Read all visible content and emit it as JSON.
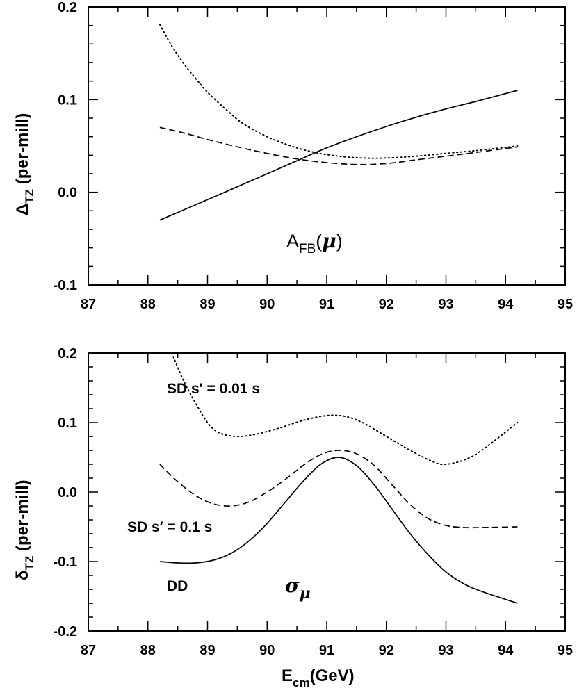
{
  "chart_data": [
    {
      "type": "line",
      "panel": "top",
      "ylabel": {
        "main": "Δ",
        "sub": "TZ",
        "rest": " (per-mill)"
      },
      "annotation": {
        "main": "A",
        "sub": "FB",
        "open": "(",
        "greek": "μ",
        "close": ")"
      },
      "xlim": [
        87,
        95
      ],
      "ylim": [
        -0.1,
        0.2
      ],
      "xticks": [
        87,
        88,
        89,
        90,
        91,
        92,
        93,
        94,
        95
      ],
      "xtick_labels": [
        "87",
        "88",
        "89",
        "90",
        "91",
        "92",
        "93",
        "94",
        "95"
      ],
      "yticks": [
        -0.1,
        0.0,
        0.1,
        0.2
      ],
      "ytick_labels": [
        "-0.1",
        "0.0",
        "0.1",
        "0.2"
      ],
      "series": [
        {
          "name": "solid",
          "style": "solid",
          "x": [
            88.2,
            88.6,
            89.0,
            89.5,
            90.0,
            90.5,
            91.0,
            91.5,
            92.0,
            92.5,
            93.0,
            93.5,
            94.2
          ],
          "y": [
            -0.03,
            -0.019,
            -0.008,
            0.006,
            0.02,
            0.034,
            0.048,
            0.06,
            0.071,
            0.081,
            0.09,
            0.098,
            0.11
          ]
        },
        {
          "name": "dashed",
          "style": "dashed",
          "x": [
            88.2,
            88.6,
            89.0,
            89.5,
            90.0,
            90.5,
            91.0,
            91.5,
            92.0,
            92.5,
            93.0,
            93.5,
            94.2
          ],
          "y": [
            0.07,
            0.064,
            0.057,
            0.049,
            0.042,
            0.036,
            0.032,
            0.03,
            0.031,
            0.035,
            0.039,
            0.043,
            0.049
          ]
        },
        {
          "name": "dotted",
          "style": "dotted",
          "x": [
            88.2,
            88.4,
            88.6,
            88.8,
            89.0,
            89.3,
            89.6,
            90.0,
            90.4,
            90.8,
            91.2,
            91.6,
            92.0,
            92.5,
            93.0,
            93.5,
            94.2
          ],
          "y": [
            0.181,
            0.158,
            0.139,
            0.123,
            0.108,
            0.09,
            0.074,
            0.06,
            0.05,
            0.043,
            0.039,
            0.037,
            0.037,
            0.039,
            0.042,
            0.045,
            0.05
          ]
        }
      ]
    },
    {
      "type": "line",
      "panel": "bottom",
      "ylabel": {
        "main": "δ",
        "sub": "TZ",
        "rest": " (per-mill)"
      },
      "xlabel": {
        "main": "E",
        "sub": "cm",
        "rest": "(GeV)"
      },
      "annotations": [
        {
          "text": "SD s′ = 0.01 s"
        },
        {
          "text": "SD s′ = 0.1 s"
        },
        {
          "text": "DD"
        }
      ],
      "sigma_label": {
        "main": "σ",
        "sub": "μ"
      },
      "xlim": [
        87,
        95
      ],
      "ylim": [
        -0.2,
        0.2
      ],
      "xticks": [
        87,
        88,
        89,
        90,
        91,
        92,
        93,
        94,
        95
      ],
      "xtick_labels": [
        "87",
        "88",
        "89",
        "90",
        "91",
        "92",
        "93",
        "94",
        "95"
      ],
      "yticks": [
        -0.2,
        -0.1,
        0.0,
        0.1,
        0.2
      ],
      "ytick_labels": [
        "-0.2",
        "-0.1",
        "0.0",
        "0.1",
        "0.2"
      ],
      "series": [
        {
          "name": "DD",
          "style": "solid",
          "x": [
            88.2,
            88.5,
            88.8,
            89.1,
            89.4,
            89.7,
            90.0,
            90.3,
            90.6,
            90.9,
            91.2,
            91.5,
            91.8,
            92.1,
            92.4,
            92.7,
            93.0,
            93.3,
            93.6,
            94.2
          ],
          "y": [
            -0.1,
            -0.102,
            -0.102,
            -0.098,
            -0.088,
            -0.07,
            -0.045,
            -0.015,
            0.015,
            0.04,
            0.05,
            0.038,
            0.01,
            -0.025,
            -0.06,
            -0.09,
            -0.115,
            -0.132,
            -0.143,
            -0.16
          ]
        },
        {
          "name": "SD s' = 0.1 s",
          "style": "dashed",
          "x": [
            88.2,
            88.5,
            88.8,
            89.1,
            89.4,
            89.7,
            90.0,
            90.3,
            90.6,
            90.9,
            91.2,
            91.5,
            91.8,
            92.1,
            92.4,
            92.7,
            93.0,
            93.3,
            93.6,
            94.2
          ],
          "y": [
            0.04,
            0.015,
            -0.005,
            -0.017,
            -0.02,
            -0.014,
            0.0,
            0.018,
            0.038,
            0.054,
            0.06,
            0.055,
            0.038,
            0.01,
            -0.018,
            -0.038,
            -0.048,
            -0.051,
            -0.051,
            -0.05
          ]
        },
        {
          "name": "SD s' = 0.01 s",
          "style": "dotted",
          "x": [
            88.4,
            88.6,
            88.8,
            89.0,
            89.2,
            89.5,
            89.8,
            90.2,
            90.6,
            91.0,
            91.3,
            91.6,
            92.0,
            92.4,
            92.8,
            93.0,
            93.3,
            93.6,
            94.2
          ],
          "y": [
            0.2,
            0.16,
            0.128,
            0.1,
            0.085,
            0.08,
            0.083,
            0.092,
            0.103,
            0.11,
            0.109,
            0.1,
            0.08,
            0.06,
            0.043,
            0.04,
            0.046,
            0.06,
            0.1
          ]
        }
      ]
    }
  ]
}
